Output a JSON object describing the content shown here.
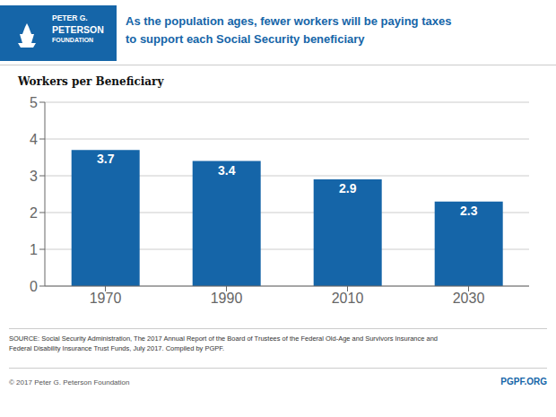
{
  "chart_data": {
    "type": "bar",
    "title": "As the population ages, fewer workers will be paying taxes\nto support each Social Security beneficiary",
    "ylabel": "Workers per Beneficiary",
    "categories": [
      "1970",
      "1990",
      "2010",
      "2030"
    ],
    "values": [
      3.7,
      3.4,
      2.9,
      2.3
    ],
    "color": "#1565a8",
    "ylim": [
      0,
      5
    ],
    "yticks": [
      0,
      1,
      2,
      3,
      4,
      5
    ],
    "grid": true,
    "data_labels": true,
    "annotations": [
      "PETER G.",
      "PETERSON",
      "FOUNDATION",
      "SOURCE: Social Security Administration, The 2017 Annual Report of the Board of Trustees of the Federal Old-Age and Survivors Insurance and",
      "Federal Disability Insurance Trust Funds, July 2017. Compiled by PGPF.",
      "© 2017 Peter G. Peterson Foundation",
      "PGPF.ORG"
    ]
  }
}
